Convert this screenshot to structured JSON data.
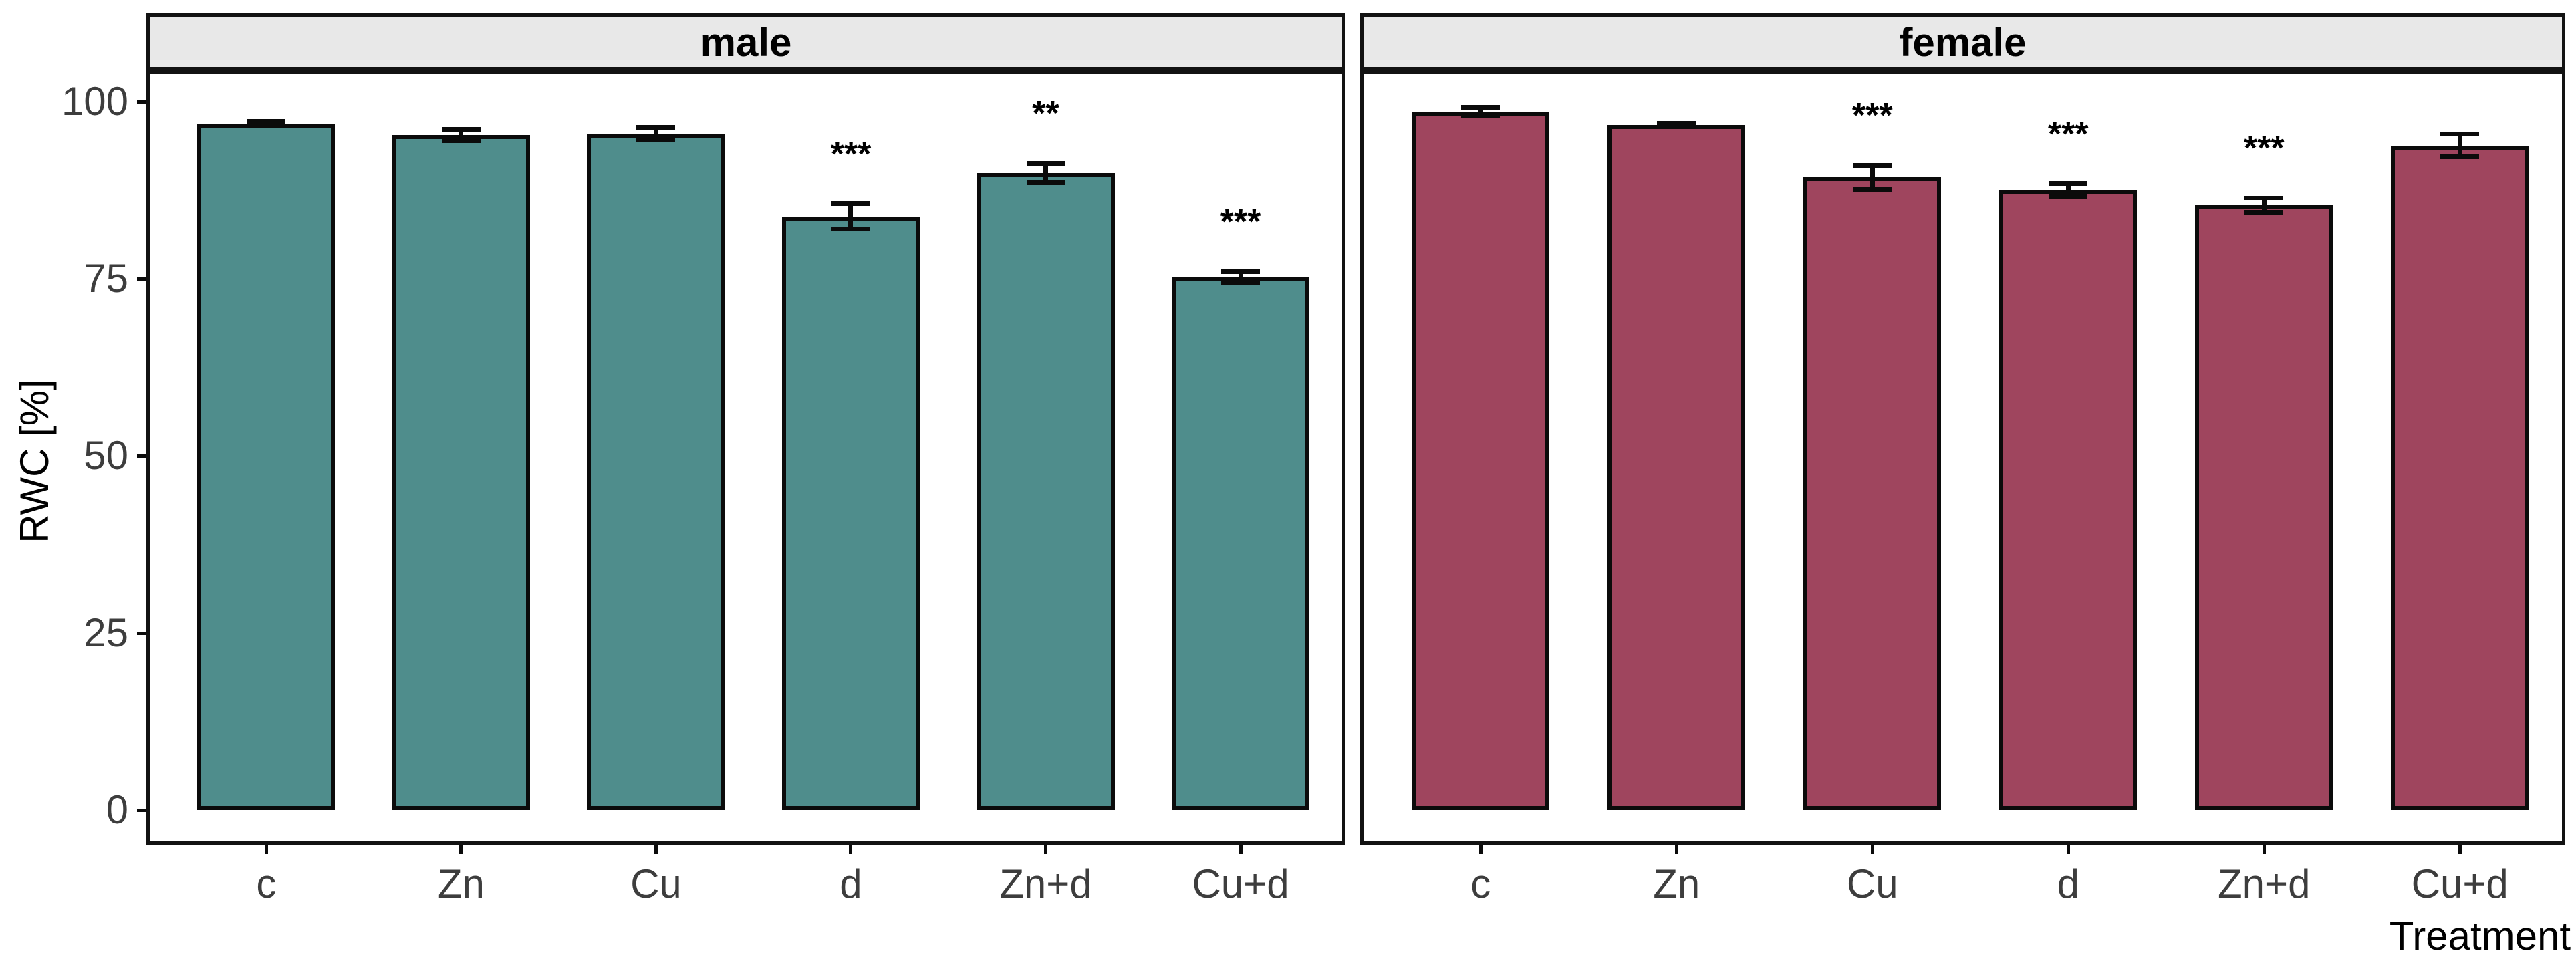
{
  "chart_data": {
    "type": "bar",
    "title": "",
    "xlabel": "Treatment",
    "ylabel": "RWC [%]",
    "yticks": [
      0,
      25,
      50,
      75,
      100
    ],
    "ylim": [
      0,
      109
    ],
    "grid": false,
    "legend": "none",
    "error_bars": "mean ± SE, capped",
    "categories": [
      "c",
      "Zn",
      "Cu",
      "d",
      "Zn+d",
      "Cu+d"
    ],
    "facets": [
      {
        "label": "male",
        "bar_color": "#4F8D8C",
        "values": [
          96.9,
          95.3,
          95.5,
          83.8,
          89.9,
          75.2
        ],
        "se": [
          0.3,
          0.8,
          0.9,
          1.8,
          1.4,
          0.8
        ],
        "significance": [
          "",
          "",
          "",
          "***",
          "**",
          "***"
        ]
      },
      {
        "label": "female",
        "bar_color": "#9F455E",
        "values": [
          98.6,
          96.7,
          89.3,
          87.5,
          85.4,
          93.8
        ],
        "se": [
          0.6,
          0.25,
          1.7,
          0.9,
          1.0,
          1.6
        ],
        "significance": [
          "",
          "",
          "***",
          "***",
          "***",
          ""
        ]
      }
    ],
    "colors": {
      "male_bar": "#4F8D8C",
      "female_bar": "#9F455E",
      "bar_border": "#0b0b0b",
      "panel_border": "#121212",
      "strip_background": "#E8E8E8",
      "tick_label": "#3d3d3d",
      "axis_title": "#000000"
    }
  }
}
